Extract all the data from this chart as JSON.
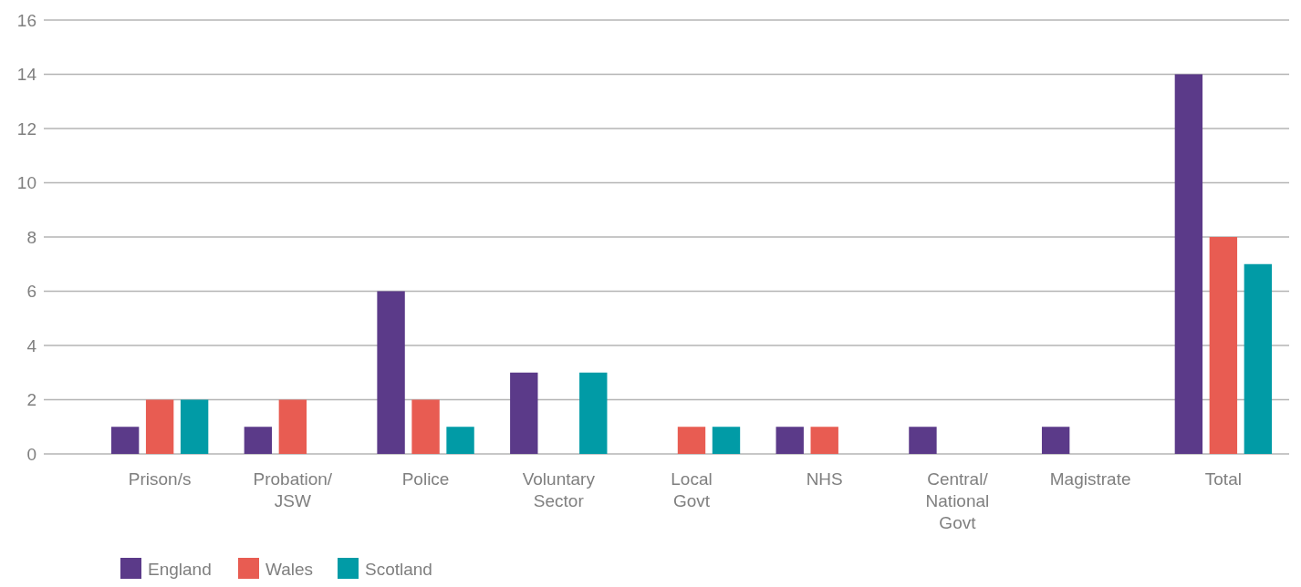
{
  "chart_data": {
    "type": "bar",
    "categories": [
      "Prison/s",
      "Probation/JSW",
      "Police",
      "Voluntary Sector",
      "Local Govt",
      "NHS",
      "Central/National Govt",
      "Magistrate",
      "Total"
    ],
    "series": [
      {
        "name": "England",
        "color": "#5b3a89",
        "values": [
          1,
          1,
          6,
          3,
          0,
          1,
          1,
          1,
          14
        ]
      },
      {
        "name": "Wales",
        "color": "#e85c52",
        "values": [
          2,
          2,
          2,
          0,
          1,
          1,
          0,
          0,
          8
        ]
      },
      {
        "name": "Scotland",
        "color": "#019ba6",
        "values": [
          2,
          0,
          1,
          3,
          1,
          0,
          0,
          0,
          7
        ]
      }
    ],
    "ylim": [
      0,
      16
    ],
    "yticks": [
      0,
      2,
      4,
      6,
      8,
      10,
      12,
      14,
      16
    ],
    "grid": "y",
    "legend": "bottom"
  }
}
